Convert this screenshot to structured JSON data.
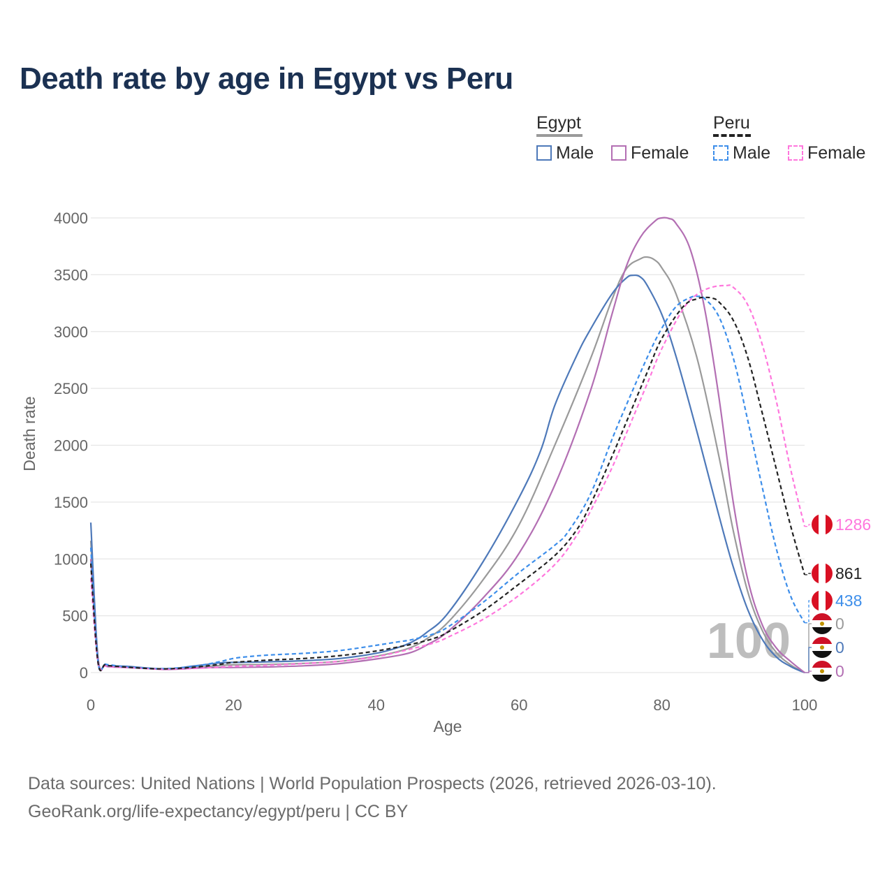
{
  "title": "Death rate by age in Egypt vs Peru",
  "legend": {
    "group1": "Egypt",
    "group2": "Peru",
    "items": [
      {
        "label": "Male"
      },
      {
        "label": "Female"
      },
      {
        "label": "Male"
      },
      {
        "label": "Female"
      }
    ]
  },
  "year_watermark": "100",
  "footer": {
    "line1": "Data sources: United Nations | World Population Prospects (2026, retrieved 2026-03-10).",
    "line2": "GeoRank.org/life-expectancy/egypt/peru | CC BY"
  },
  "chart_data": {
    "type": "line",
    "title": "Death rate by age in Egypt vs Peru",
    "xlabel": "Age",
    "ylabel": "Death rate",
    "xlim": [
      0,
      100
    ],
    "ylim": [
      0,
      4000
    ],
    "xticks": [
      0,
      20,
      40,
      60,
      80,
      100
    ],
    "yticks": [
      0,
      500,
      1000,
      1500,
      2000,
      2500,
      3000,
      3500,
      4000
    ],
    "grid": true,
    "legend_position": "top-right",
    "series": [
      {
        "name": "Egypt Male",
        "color": "#4e79b9",
        "dash": false,
        "points": [
          [
            0,
            1320
          ],
          [
            1,
            140
          ],
          [
            2,
            70
          ],
          [
            3,
            60
          ],
          [
            5,
            55
          ],
          [
            8,
            40
          ],
          [
            10,
            32
          ],
          [
            12,
            38
          ],
          [
            14,
            55
          ],
          [
            16,
            70
          ],
          [
            18,
            85
          ],
          [
            20,
            90
          ],
          [
            25,
            95
          ],
          [
            30,
            105
          ],
          [
            35,
            125
          ],
          [
            40,
            170
          ],
          [
            43,
            220
          ],
          [
            45,
            270
          ],
          [
            47,
            350
          ],
          [
            50,
            520
          ],
          [
            55,
            980
          ],
          [
            60,
            1540
          ],
          [
            63,
            1950
          ],
          [
            65,
            2350
          ],
          [
            68,
            2780
          ],
          [
            70,
            3020
          ],
          [
            73,
            3330
          ],
          [
            75,
            3470
          ],
          [
            76,
            3495
          ],
          [
            77,
            3480
          ],
          [
            78,
            3400
          ],
          [
            80,
            3150
          ],
          [
            82,
            2780
          ],
          [
            85,
            2100
          ],
          [
            88,
            1380
          ],
          [
            90,
            930
          ],
          [
            92,
            560
          ],
          [
            94,
            300
          ],
          [
            96,
            140
          ],
          [
            98,
            55
          ],
          [
            100,
            0
          ]
        ],
        "end_label": "0"
      },
      {
        "name": "Egypt Female",
        "color": "#b36fb3",
        "dash": false,
        "points": [
          [
            0,
            1000
          ],
          [
            1,
            120
          ],
          [
            2,
            60
          ],
          [
            3,
            50
          ],
          [
            5,
            45
          ],
          [
            8,
            35
          ],
          [
            10,
            28
          ],
          [
            12,
            30
          ],
          [
            15,
            40
          ],
          [
            18,
            45
          ],
          [
            20,
            45
          ],
          [
            25,
            50
          ],
          [
            30,
            60
          ],
          [
            35,
            80
          ],
          [
            40,
            120
          ],
          [
            43,
            150
          ],
          [
            45,
            180
          ],
          [
            47,
            240
          ],
          [
            50,
            360
          ],
          [
            55,
            660
          ],
          [
            60,
            1050
          ],
          [
            65,
            1650
          ],
          [
            70,
            2480
          ],
          [
            73,
            3150
          ],
          [
            75,
            3570
          ],
          [
            77,
            3830
          ],
          [
            79,
            3970
          ],
          [
            80,
            4000
          ],
          [
            81,
            3995
          ],
          [
            82,
            3950
          ],
          [
            84,
            3720
          ],
          [
            86,
            3200
          ],
          [
            88,
            2420
          ],
          [
            90,
            1500
          ],
          [
            92,
            830
          ],
          [
            94,
            430
          ],
          [
            96,
            220
          ],
          [
            98,
            100
          ],
          [
            100,
            0
          ]
        ],
        "end_label": "0"
      },
      {
        "name": "Egypt Total",
        "color": "#9a9a9a",
        "dash": false,
        "points": [
          [
            0,
            1160
          ],
          [
            1,
            130
          ],
          [
            2,
            65
          ],
          [
            3,
            55
          ],
          [
            5,
            50
          ],
          [
            8,
            38
          ],
          [
            10,
            30
          ],
          [
            12,
            34
          ],
          [
            15,
            48
          ],
          [
            18,
            62
          ],
          [
            20,
            68
          ],
          [
            25,
            72
          ],
          [
            30,
            82
          ],
          [
            35,
            100
          ],
          [
            40,
            145
          ],
          [
            43,
            185
          ],
          [
            45,
            225
          ],
          [
            47,
            295
          ],
          [
            50,
            440
          ],
          [
            55,
            820
          ],
          [
            60,
            1300
          ],
          [
            65,
            2000
          ],
          [
            70,
            2760
          ],
          [
            73,
            3280
          ],
          [
            75,
            3550
          ],
          [
            77,
            3640
          ],
          [
            78,
            3655
          ],
          [
            79,
            3630
          ],
          [
            80,
            3560
          ],
          [
            82,
            3330
          ],
          [
            85,
            2750
          ],
          [
            88,
            1900
          ],
          [
            90,
            1250
          ],
          [
            92,
            720
          ],
          [
            94,
            380
          ],
          [
            96,
            180
          ],
          [
            98,
            70
          ],
          [
            100,
            0
          ]
        ],
        "end_label": "0"
      },
      {
        "name": "Peru Male",
        "color": "#3d8eea",
        "dash": true,
        "points": [
          [
            0,
            1100
          ],
          [
            1,
            100
          ],
          [
            2,
            75
          ],
          [
            3,
            65
          ],
          [
            5,
            50
          ],
          [
            8,
            38
          ],
          [
            10,
            35
          ],
          [
            12,
            40
          ],
          [
            15,
            60
          ],
          [
            18,
            95
          ],
          [
            20,
            125
          ],
          [
            22,
            140
          ],
          [
            25,
            155
          ],
          [
            30,
            170
          ],
          [
            35,
            195
          ],
          [
            40,
            240
          ],
          [
            43,
            270
          ],
          [
            45,
            290
          ],
          [
            48,
            340
          ],
          [
            50,
            400
          ],
          [
            55,
            620
          ],
          [
            60,
            880
          ],
          [
            65,
            1120
          ],
          [
            67,
            1250
          ],
          [
            70,
            1570
          ],
          [
            73,
            2050
          ],
          [
            75,
            2350
          ],
          [
            78,
            2780
          ],
          [
            80,
            3030
          ],
          [
            82,
            3220
          ],
          [
            84,
            3300
          ],
          [
            85,
            3310
          ],
          [
            86,
            3290
          ],
          [
            88,
            3130
          ],
          [
            90,
            2770
          ],
          [
            92,
            2230
          ],
          [
            94,
            1650
          ],
          [
            96,
            1100
          ],
          [
            98,
            680
          ],
          [
            100,
            438
          ]
        ],
        "end_label": "438"
      },
      {
        "name": "Peru Female",
        "color": "#ff77dd",
        "dash": true,
        "points": [
          [
            0,
            830
          ],
          [
            1,
            85
          ],
          [
            2,
            60
          ],
          [
            3,
            50
          ],
          [
            5,
            45
          ],
          [
            8,
            35
          ],
          [
            10,
            30
          ],
          [
            12,
            32
          ],
          [
            15,
            38
          ],
          [
            18,
            48
          ],
          [
            20,
            55
          ],
          [
            25,
            65
          ],
          [
            30,
            80
          ],
          [
            35,
            100
          ],
          [
            40,
            140
          ],
          [
            43,
            180
          ],
          [
            45,
            210
          ],
          [
            48,
            260
          ],
          [
            50,
            310
          ],
          [
            55,
            470
          ],
          [
            60,
            680
          ],
          [
            65,
            950
          ],
          [
            68,
            1200
          ],
          [
            70,
            1420
          ],
          [
            73,
            1800
          ],
          [
            75,
            2100
          ],
          [
            78,
            2550
          ],
          [
            80,
            2850
          ],
          [
            83,
            3200
          ],
          [
            85,
            3330
          ],
          [
            87,
            3390
          ],
          [
            89,
            3405
          ],
          [
            90,
            3390
          ],
          [
            92,
            3240
          ],
          [
            94,
            2900
          ],
          [
            96,
            2400
          ],
          [
            98,
            1800
          ],
          [
            100,
            1286
          ]
        ],
        "end_label": "1286"
      },
      {
        "name": "Peru Total",
        "color": "#222222",
        "dash": true,
        "points": [
          [
            0,
            960
          ],
          [
            1,
            95
          ],
          [
            2,
            68
          ],
          [
            3,
            58
          ],
          [
            5,
            48
          ],
          [
            8,
            36
          ],
          [
            10,
            33
          ],
          [
            12,
            36
          ],
          [
            15,
            50
          ],
          [
            18,
            72
          ],
          [
            20,
            90
          ],
          [
            25,
            110
          ],
          [
            30,
            125
          ],
          [
            35,
            150
          ],
          [
            40,
            190
          ],
          [
            43,
            225
          ],
          [
            45,
            250
          ],
          [
            48,
            300
          ],
          [
            50,
            355
          ],
          [
            55,
            545
          ],
          [
            60,
            780
          ],
          [
            65,
            1030
          ],
          [
            68,
            1250
          ],
          [
            70,
            1480
          ],
          [
            73,
            1900
          ],
          [
            75,
            2200
          ],
          [
            78,
            2650
          ],
          [
            80,
            2940
          ],
          [
            83,
            3220
          ],
          [
            85,
            3290
          ],
          [
            86,
            3300
          ],
          [
            87,
            3295
          ],
          [
            88,
            3260
          ],
          [
            90,
            3100
          ],
          [
            92,
            2780
          ],
          [
            94,
            2300
          ],
          [
            96,
            1800
          ],
          [
            98,
            1300
          ],
          [
            100,
            861
          ]
        ],
        "end_label": "861"
      }
    ],
    "end_labels": [
      {
        "text": "1286",
        "color": "#ff77dd",
        "country": "Peru"
      },
      {
        "text": "861",
        "color": "#222222",
        "country": "Peru"
      },
      {
        "text": "438",
        "color": "#3d8eea",
        "country": "Peru"
      },
      {
        "text": "0",
        "color": "#9a9a9a",
        "country": "Egypt"
      },
      {
        "text": "0",
        "color": "#4e79b9",
        "country": "Egypt"
      },
      {
        "text": "0",
        "color": "#b36fb3",
        "country": "Egypt"
      }
    ]
  }
}
